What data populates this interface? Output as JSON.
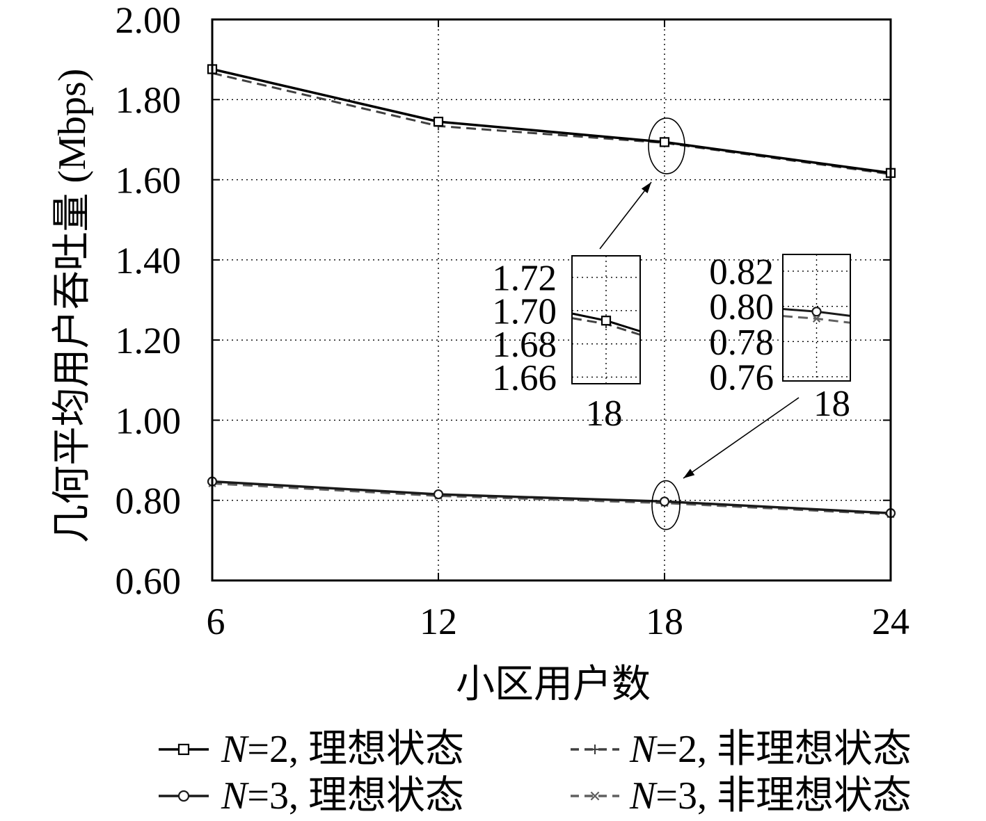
{
  "chart_data": {
    "type": "line",
    "x": [
      6,
      12,
      18,
      24
    ],
    "xlim": [
      6,
      24
    ],
    "ylim": [
      0.6,
      2.0
    ],
    "xticks": [
      "6",
      "12",
      "18",
      "24"
    ],
    "yticks": [
      "0.60",
      "0.80",
      "1.00",
      "1.20",
      "1.40",
      "1.60",
      "1.80",
      "2.00"
    ],
    "xlabel": "小区用户数",
    "ylabel": "几何平均用户吞吐量 (Mbps)",
    "grid": true,
    "legend_position": "bottom",
    "series": [
      {
        "name": "N=2, 理想状态",
        "values": [
          1.876,
          1.745,
          1.694,
          1.617
        ],
        "line_style": "solid",
        "marker": "square",
        "color": "#000000"
      },
      {
        "name": "N=2, 非理想状态",
        "values": [
          1.866,
          1.734,
          1.692,
          1.614
        ],
        "line_style": "dashed",
        "marker": "plus",
        "color": "#404040"
      },
      {
        "name": "N=3, 理想状态",
        "values": [
          0.847,
          0.815,
          0.797,
          0.768
        ],
        "line_style": "solid",
        "marker": "circle",
        "color": "#1a1a1a"
      },
      {
        "name": "N=3, 非理想状态",
        "values": [
          0.842,
          0.811,
          0.793,
          0.765
        ],
        "line_style": "dashed",
        "marker": "x",
        "color": "#606060"
      }
    ],
    "insets": [
      {
        "xlim": [
          17.5,
          18.5
        ],
        "ylim": [
          1.656,
          1.733
        ],
        "xticks": [
          "18"
        ],
        "yticks": [
          "1.72",
          "1.70",
          "1.68",
          "1.66"
        ]
      },
      {
        "xlim": [
          17.5,
          18.5
        ],
        "ylim": [
          0.7576,
          0.8295
        ],
        "xticks": [
          "18"
        ],
        "yticks": [
          "0.82",
          "0.80",
          "0.78",
          "0.76"
        ]
      }
    ]
  }
}
